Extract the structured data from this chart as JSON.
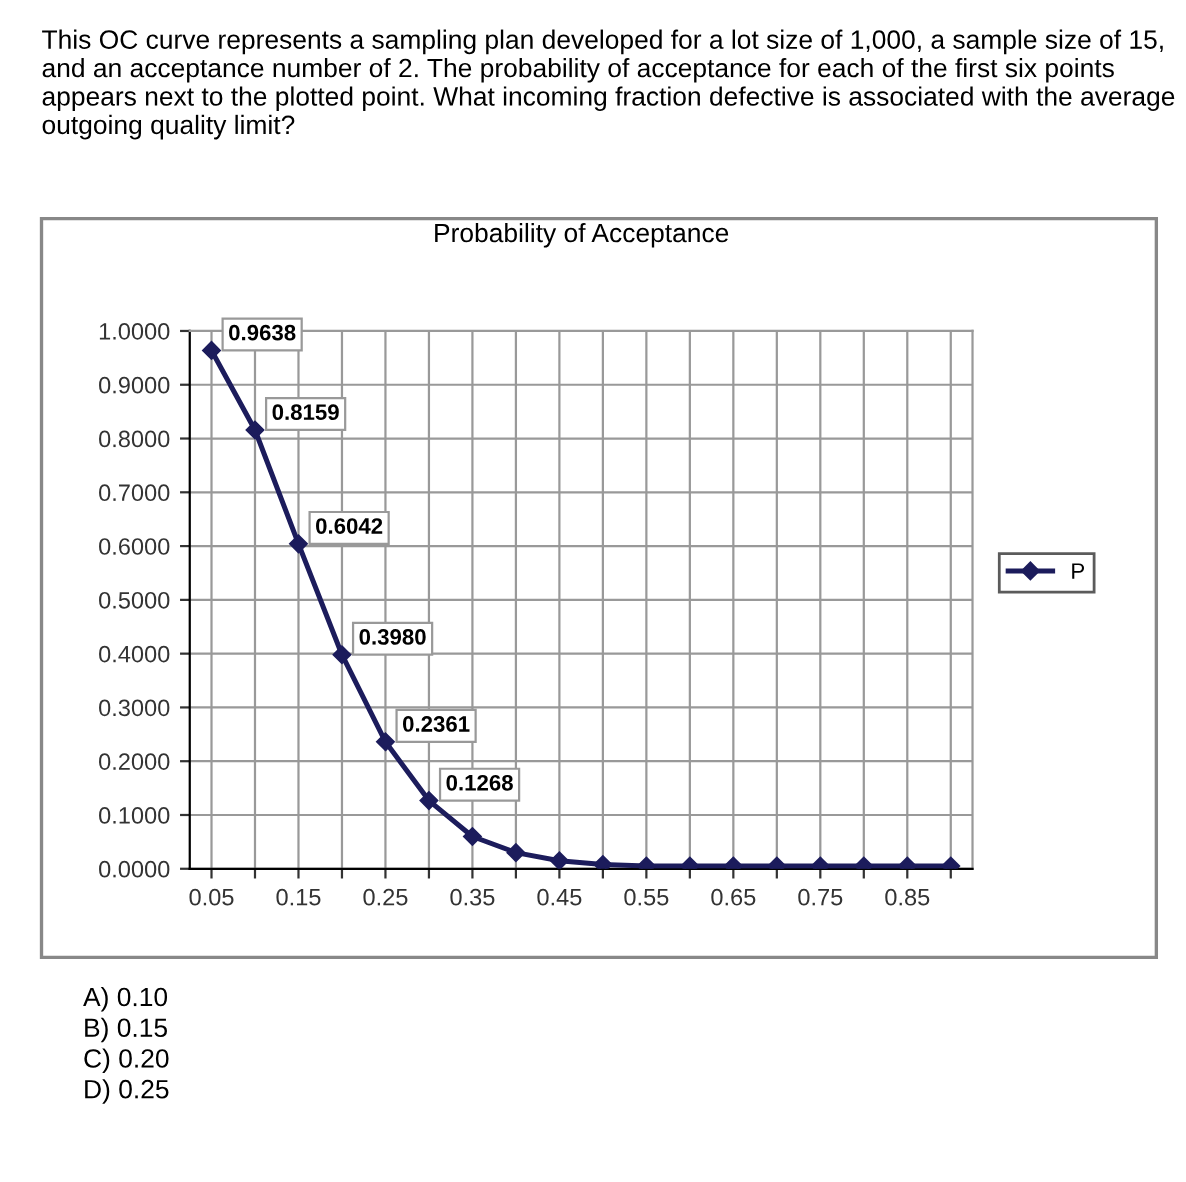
{
  "chart_data": {
    "type": "line",
    "title": "Probability of Acceptance",
    "annotations": [
      "This OC curve represents a sampling plan developed for a lot size of 1,000, a sample size of 15, and an acceptance number of 2. The probability of acceptance for each of the first six points appears next to the plotted point. What incoming fraction defective is associated with the average outgoing quality limit?",
      "A) 0.10",
      "B) 0.15",
      "C) 0.20",
      "D) 0.25"
    ],
    "categories": [
      "0.05",
      null,
      "0.15",
      null,
      "0.25",
      null,
      "0.35",
      null,
      "0.45",
      null,
      "0.55",
      null,
      "0.65",
      null,
      "0.75",
      null,
      "0.85",
      null
    ],
    "series": [
      {
        "name": "P",
        "color": "#1c1c5c",
        "values": [
          0.9638,
          0.8159,
          0.6042,
          0.398,
          0.2361,
          0.1268,
          0.06,
          0.03,
          0.015,
          0.008,
          0.005,
          0.005,
          0.005,
          0.005,
          0.005,
          0.005,
          0.005,
          0.005
        ],
        "value_labels": [
          "0.9638",
          "0.8159",
          "0.6042",
          "0.3980",
          "0.2361",
          "0.1268",
          null,
          null,
          null,
          null,
          null,
          null,
          null,
          null,
          null,
          null,
          null,
          null
        ]
      }
    ],
    "ylim": [
      0,
      1
    ],
    "yticks": [
      {
        "value": 0,
        "label": "0.0000"
      },
      {
        "value": 0.1,
        "label": "0.1000"
      },
      {
        "value": 0.2,
        "label": "0.2000"
      },
      {
        "value": 0.3,
        "label": "0.3000"
      },
      {
        "value": 0.4,
        "label": "0.4000"
      },
      {
        "value": 0.5,
        "label": "0.5000"
      },
      {
        "value": 0.6,
        "label": "0.6000"
      },
      {
        "value": 0.7,
        "label": "0.7000"
      },
      {
        "value": 0.8,
        "label": "0.8000"
      },
      {
        "value": 0.9,
        "label": "0.9000"
      },
      {
        "value": 1,
        "label": "1.0000"
      }
    ],
    "grid": true,
    "legend": "right",
    "marker": "diamond",
    "line_style": "solid"
  }
}
